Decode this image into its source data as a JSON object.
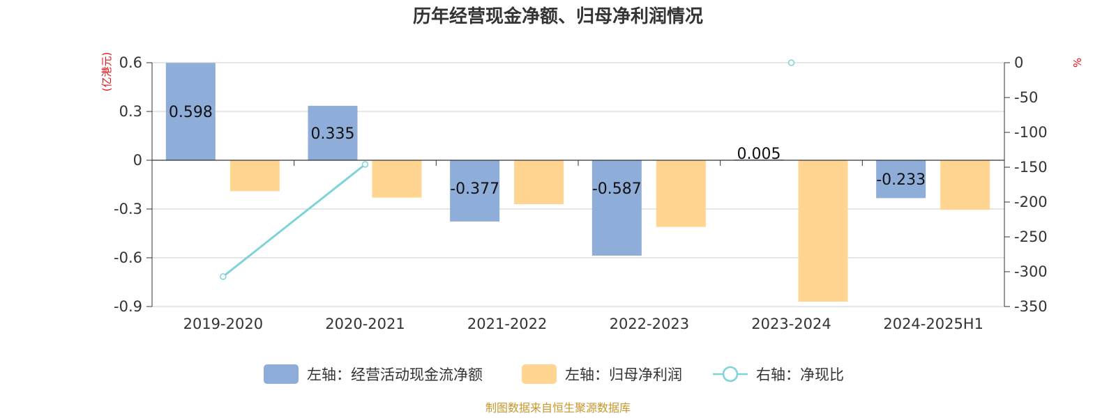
{
  "source": "制图数据来自恒生聚源数据库",
  "colors": {
    "operating_cash": "#8eadd9",
    "net_profit": "#ffd591",
    "ratio": "#7dd3d8",
    "unit_text": "#e8141b",
    "source_text": "#c8962a",
    "grid": "#cccccc"
  },
  "chart_data": {
    "type": "bar",
    "title": "历年经营现金净额、归母净利润情况",
    "categories": [
      "2019-2020",
      "2020-2021",
      "2021-2022",
      "2022-2023",
      "2023-2024",
      "2024-2025H1"
    ],
    "left_axis": {
      "unit": "(亿港元)",
      "ylim": [
        -0.9,
        0.6
      ],
      "ticks": [
        "0.6",
        "0.3",
        "0",
        "-0.3",
        "-0.6",
        "-0.9"
      ]
    },
    "right_axis": {
      "unit": "%",
      "ylim": [
        -350,
        0
      ],
      "ticks": [
        "0",
        "-50",
        "-100",
        "-150",
        "-200",
        "-250",
        "-300",
        "-350"
      ]
    },
    "series": [
      {
        "name": "左轴：经营活动现金流净额",
        "type": "bar",
        "axis": "left",
        "values": [
          0.598,
          0.335,
          -0.377,
          -0.587,
          0.005,
          -0.233
        ],
        "labels": [
          "0.598",
          "0.335",
          "-0.377",
          "-0.587",
          "0.005",
          "-0.233"
        ]
      },
      {
        "name": "左轴：归母净利润",
        "type": "bar",
        "axis": "left",
        "values": [
          -0.19,
          -0.23,
          -0.27,
          -0.41,
          -0.87,
          -0.305
        ]
      },
      {
        "name": "右轴：净现比",
        "type": "line",
        "axis": "right",
        "values": [
          -307,
          -146,
          null,
          null,
          0,
          null
        ]
      }
    ],
    "grid": true,
    "legend_position": "bottom"
  }
}
